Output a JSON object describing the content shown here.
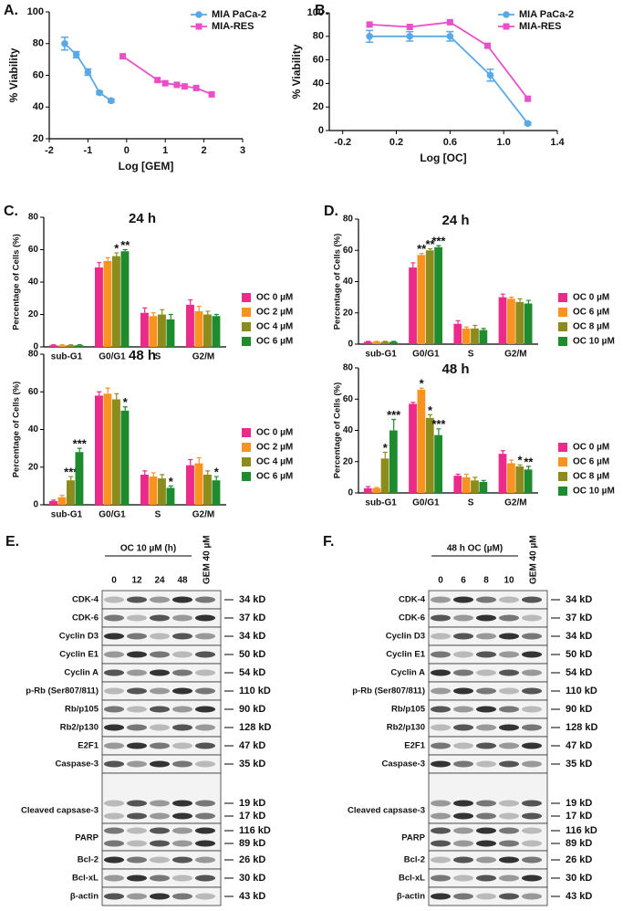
{
  "chart_data": [
    {
      "type": "line",
      "panel": "A.",
      "xlabel": "Log [GEM]",
      "ylabel": "% Viability",
      "xlim": [
        -2,
        3
      ],
      "xticks": [
        -2,
        -1,
        0,
        1,
        2,
        3
      ],
      "ylim": [
        20,
        100
      ],
      "yticks": [
        20,
        40,
        60,
        80,
        100
      ],
      "series": [
        {
          "name": "MIA PaCa-2",
          "color": "#5aa9e6",
          "marker": "circle",
          "x": [
            -1.6,
            -1.3,
            -1.0,
            -0.7,
            -0.4
          ],
          "values": [
            80,
            73,
            62,
            49,
            44
          ],
          "errors": [
            4,
            2,
            2,
            1,
            1
          ]
        },
        {
          "name": "MIA-RES",
          "color": "#e84fc8",
          "marker": "square",
          "x": [
            -0.1,
            0.8,
            1.0,
            1.3,
            1.5,
            1.8,
            2.2
          ],
          "values": [
            72,
            57,
            55,
            54,
            53,
            52,
            48
          ]
        }
      ]
    },
    {
      "type": "line",
      "panel": "B.",
      "xlabel": "Log [OC]",
      "ylabel": "% Viability",
      "xlim": [
        -0.3,
        1.4
      ],
      "xticks": [
        -0.2,
        0.2,
        0.6,
        {
          "value": 1,
          "label": "1.0"
        },
        1.4
      ],
      "ylim": [
        0,
        100
      ],
      "yticks": [
        0,
        20,
        40,
        60,
        80,
        100
      ],
      "series": [
        {
          "name": "MIA PaCa-2",
          "color": "#5aa9e6",
          "marker": "circle",
          "x": [
            0,
            0.3,
            0.6,
            0.9,
            1.18
          ],
          "values": [
            80,
            80,
            80,
            47,
            6
          ],
          "errors": [
            5,
            4,
            4,
            5,
            1
          ]
        },
        {
          "name": "MIA-RES",
          "color": "#e84fc8",
          "marker": "square",
          "x": [
            0,
            0.3,
            0.6,
            0.88,
            1.18
          ],
          "values": [
            90,
            88,
            92,
            72,
            27
          ]
        }
      ]
    },
    {
      "type": "bar",
      "panel": "C.",
      "title": "24 h",
      "ylabel": "Percentage of Cells (%)",
      "categories": [
        "sub-G1",
        "G0/G1",
        "S",
        "G2/M"
      ],
      "ylim": [
        0,
        80
      ],
      "yticks": [
        0,
        20,
        40,
        60,
        80
      ],
      "series": [
        {
          "name": "OC 0 µM",
          "color": "#ec2a8a",
          "values": [
            1,
            49,
            21,
            26
          ],
          "errors": [
            0.3,
            3,
            3,
            3
          ],
          "significance": [
            null,
            null,
            null,
            null
          ]
        },
        {
          "name": "OC 2 µM",
          "color": "#f7931e",
          "values": [
            1,
            53,
            19,
            22
          ],
          "errors": [
            0.3,
            2,
            2,
            3
          ],
          "significance": [
            null,
            null,
            null,
            null
          ]
        },
        {
          "name": "OC 4 µM",
          "color": "#8c8c1c",
          "values": [
            1,
            56,
            20,
            20
          ],
          "errors": [
            0.3,
            2,
            3,
            2
          ],
          "significance": [
            null,
            "*",
            null,
            null
          ]
        },
        {
          "name": "OC 6 µM",
          "color": "#1f8b2f",
          "values": [
            1,
            59,
            17,
            19
          ],
          "errors": [
            0.3,
            1,
            3,
            1
          ],
          "significance": [
            null,
            "**",
            null,
            null
          ]
        }
      ]
    },
    {
      "type": "bar",
      "title": "48 h",
      "ylabel": "Percentage of Cells (%)",
      "categories": [
        "sub-G1",
        "G0/G1",
        "S",
        "G2/M"
      ],
      "ylim": [
        0,
        80
      ],
      "yticks": [
        0,
        20,
        40,
        60,
        80
      ],
      "series": [
        {
          "name": "OC 0 µM",
          "color": "#ec2a8a",
          "values": [
            2,
            58,
            16,
            21
          ],
          "errors": [
            0.5,
            2,
            2,
            3
          ],
          "significance": [
            null,
            null,
            null,
            null
          ]
        },
        {
          "name": "OC 2 µM",
          "color": "#f7931e",
          "values": [
            4,
            59,
            15,
            22
          ],
          "errors": [
            1,
            3,
            2,
            3
          ],
          "significance": [
            null,
            null,
            null,
            null
          ]
        },
        {
          "name": "OC 4 µM",
          "color": "#8c8c1c",
          "values": [
            13,
            56,
            14,
            16
          ],
          "errors": [
            2,
            3,
            2,
            2
          ],
          "significance": [
            "***",
            null,
            null,
            null
          ]
        },
        {
          "name": "OC 6 µM",
          "color": "#1f8b2f",
          "values": [
            28,
            50,
            9,
            13
          ],
          "errors": [
            2,
            2,
            1,
            2
          ],
          "significance": [
            "***",
            "*",
            "*",
            "*"
          ]
        }
      ]
    },
    {
      "type": "bar",
      "panel": "D.",
      "title": "24 h",
      "ylabel": "Percentage of Cells (%)",
      "categories": [
        "sub-G1",
        "G0/G1",
        "S",
        "G2/M"
      ],
      "ylim": [
        0,
        80
      ],
      "yticks": [
        0,
        20,
        40,
        60,
        80
      ],
      "series": [
        {
          "name": "OC 0 µM",
          "color": "#ec2a8a",
          "values": [
            1.5,
            49,
            13,
            30
          ],
          "errors": [
            0.3,
            3,
            2,
            2
          ],
          "significance": [
            null,
            null,
            null,
            null
          ]
        },
        {
          "name": "OC 6 µM",
          "color": "#f7931e",
          "values": [
            1.5,
            57,
            10,
            29
          ],
          "errors": [
            0.3,
            1,
            1,
            1
          ],
          "significance": [
            null,
            "**",
            null,
            null
          ]
        },
        {
          "name": "OC 8 µM",
          "color": "#8c8c1c",
          "values": [
            1.5,
            60,
            10,
            27
          ],
          "errors": [
            0.3,
            1,
            2,
            2
          ],
          "significance": [
            null,
            "**",
            null,
            null
          ]
        },
        {
          "name": "OC 10 µM",
          "color": "#1f8b2f",
          "values": [
            1.5,
            62,
            9,
            26
          ],
          "errors": [
            0.3,
            1,
            1,
            2
          ],
          "significance": [
            null,
            "***",
            null,
            null
          ]
        }
      ]
    },
    {
      "type": "bar",
      "title": "48 h",
      "ylabel": "Percentage of Cells (%)",
      "categories": [
        "sub-G1",
        "G0/G1",
        "S",
        "G2/M"
      ],
      "ylim": [
        0,
        80
      ],
      "yticks": [
        0,
        20,
        40,
        60,
        80
      ],
      "series": [
        {
          "name": "OC 0 µM",
          "color": "#ec2a8a",
          "values": [
            3,
            57,
            11,
            25
          ],
          "errors": [
            1,
            1,
            1,
            2
          ],
          "significance": [
            null,
            null,
            null,
            null
          ]
        },
        {
          "name": "OC 6 µM",
          "color": "#f7931e",
          "values": [
            3,
            66,
            10,
            19
          ],
          "errors": [
            0.5,
            1,
            2,
            2
          ],
          "significance": [
            null,
            "*",
            null,
            null
          ]
        },
        {
          "name": "OC 8 µM",
          "color": "#8c8c1c",
          "values": [
            22,
            48,
            8,
            17
          ],
          "errors": [
            4,
            2,
            2,
            1
          ],
          "significance": [
            "*",
            "*",
            null,
            "*"
          ]
        },
        {
          "name": "OC 10 µM",
          "color": "#1f8b2f",
          "values": [
            40,
            37,
            7,
            15
          ],
          "errors": [
            7,
            4,
            1,
            2
          ],
          "significance": [
            "***",
            "***",
            null,
            "**"
          ]
        }
      ]
    }
  ],
  "blots": [
    {
      "panel": "E.",
      "header": "OC 10 µM (h)",
      "lanes": [
        "0",
        "12",
        "24",
        "48"
      ],
      "extra_lane": "GEM 40 µM",
      "rows": [
        {
          "label": "CDK-4",
          "sizes": [
            "34 kD"
          ]
        },
        {
          "label": "CDK-6",
          "sizes": [
            "37 kD"
          ]
        },
        {
          "label": "Cyclin D3",
          "sizes": [
            "34 kD"
          ]
        },
        {
          "label": "Cyclin E1",
          "sizes": [
            "50 kD"
          ]
        },
        {
          "label": "Cyclin A",
          "sizes": [
            "54 kD"
          ]
        },
        {
          "label": "p-Rb (Ser807/811)",
          "sizes": [
            "110 kD"
          ]
        },
        {
          "label": "Rb/p105",
          "sizes": [
            "90 kD"
          ]
        },
        {
          "label": "Rb2/p130",
          "sizes": [
            "128 kD"
          ]
        },
        {
          "label": "E2F1",
          "sizes": [
            "47 kD"
          ]
        },
        {
          "label": "Caspase-3",
          "sizes": [
            "35 kD"
          ]
        },
        {
          "label": "Cleaved capsase-3",
          "sizes": [
            "19 kD",
            "17 kD"
          ]
        },
        {
          "label": "PARP",
          "sizes": [
            "116 kD",
            "89 kD"
          ]
        },
        {
          "label": "Bcl-2",
          "sizes": [
            "26 kD"
          ]
        },
        {
          "label": "Bcl-xL",
          "sizes": [
            "30 kD"
          ]
        },
        {
          "label": "β-actin",
          "sizes": [
            "43 kD"
          ]
        }
      ]
    },
    {
      "panel": "F.",
      "header": "48 h OC (µM)",
      "lanes": [
        "0",
        "6",
        "8",
        "10"
      ],
      "extra_lane": "GEM 40 µM",
      "rows": [
        {
          "label": "CDK-4",
          "sizes": [
            "34 kD"
          ]
        },
        {
          "label": "CDK-6",
          "sizes": [
            "37 kD"
          ]
        },
        {
          "label": "Cyclin D3",
          "sizes": [
            "34 kD"
          ]
        },
        {
          "label": "Cyclin E1",
          "sizes": [
            "50 kD"
          ]
        },
        {
          "label": "Cyclin A",
          "sizes": [
            "54 kD"
          ]
        },
        {
          "label": "p-Rb (Ser807/811)",
          "sizes": [
            "110 kD"
          ]
        },
        {
          "label": "Rb/p105",
          "sizes": [
            "90 kD"
          ]
        },
        {
          "label": "Rb2/p130",
          "sizes": [
            "128 kD"
          ]
        },
        {
          "label": "E2F1",
          "sizes": [
            "47 kD"
          ]
        },
        {
          "label": "Caspase-3",
          "sizes": [
            "35 kD"
          ]
        },
        {
          "label": "Cleaved capsase-3",
          "sizes": [
            "19 kD",
            "17 kD"
          ]
        },
        {
          "label": "PARP",
          "sizes": [
            "116 kD",
            "89 kD"
          ]
        },
        {
          "label": "Bcl-2",
          "sizes": [
            "26 kD"
          ]
        },
        {
          "label": "Bcl-xL",
          "sizes": [
            "30 kD"
          ]
        },
        {
          "label": "β-actin",
          "sizes": [
            "43 kD"
          ]
        }
      ]
    }
  ]
}
